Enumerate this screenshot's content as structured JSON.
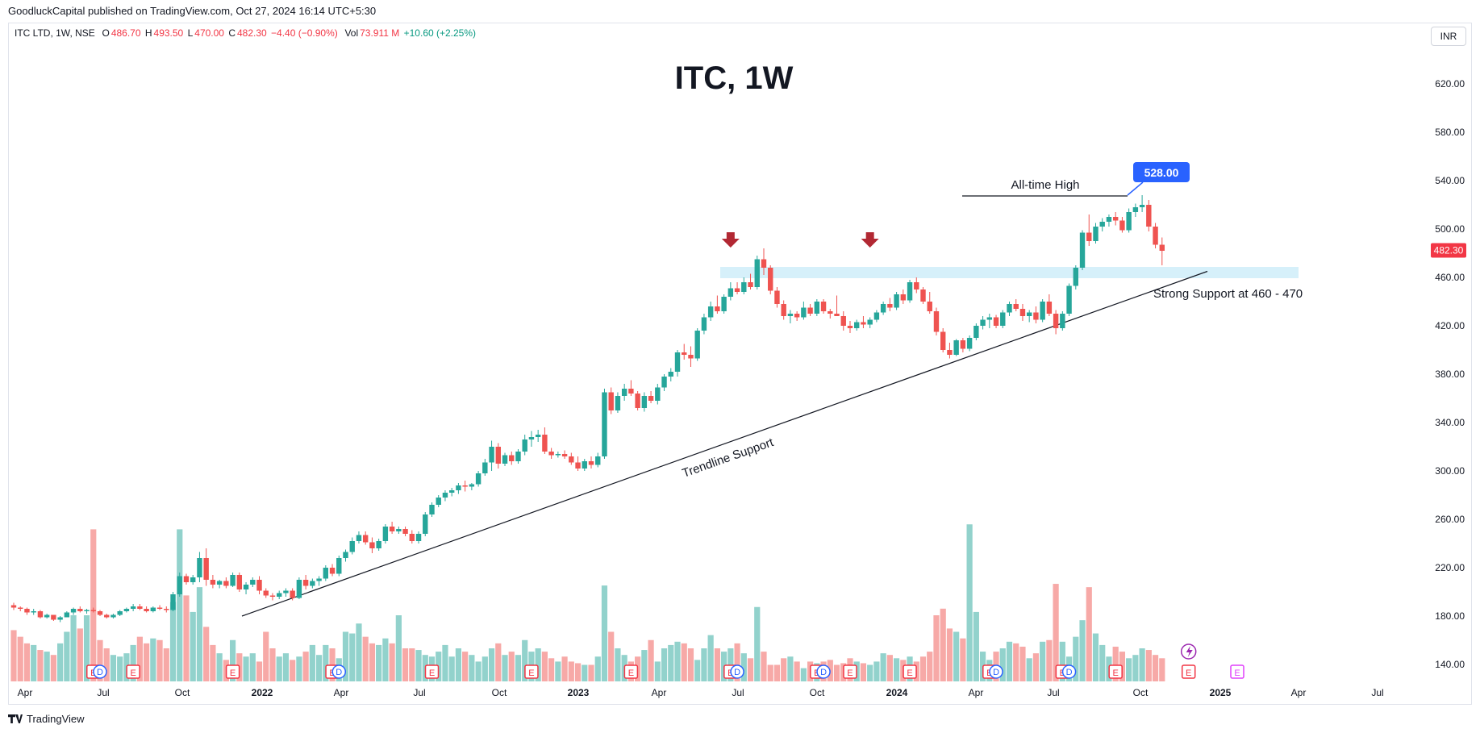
{
  "header": {
    "publisher": "GoodluckCapital published on TradingView.com, Oct 27, 2024 16:14 UTC+5:30"
  },
  "legend": {
    "symbol": "ITC LTD, 1W, NSE",
    "o_label": "O",
    "o_value": "486.70",
    "h_label": "H",
    "h_value": "493.50",
    "l_label": "L",
    "l_value": "470.00",
    "c_label": "C",
    "c_value": "482.30",
    "change": "−4.40 (−0.90%)",
    "vol_label": "Vol",
    "vol_value": "73.911 M",
    "vol_change": "+10.60 (+2.25%)"
  },
  "currency_button": "INR",
  "footer": {
    "brand": "TradingView"
  },
  "colors": {
    "up": "#26a69a",
    "down": "#ef5350",
    "vol_up": "#92d2cc",
    "vol_down": "#f7a9a7",
    "support_zone": "#d6f0fa",
    "marker_arrow": "#b22833",
    "price_badge": "#f23645",
    "ath_badge": "#2962ff",
    "dividend": "#2962ff",
    "earnings": "#f23645",
    "split": "#089981",
    "future_earnings": "#e040fb"
  },
  "chart_data": {
    "type": "candlestick",
    "title": "ITC, 1W",
    "y_axis": {
      "ticks": [
        140,
        180,
        220,
        260,
        300,
        340,
        380,
        420,
        460,
        500,
        540,
        580,
        620
      ],
      "range": [
        130,
        650
      ],
      "position": "right"
    },
    "x_axis": {
      "tick_labels": [
        "Apr",
        "Jul",
        "Oct",
        "2022",
        "Apr",
        "Jul",
        "Oct",
        "2023",
        "Apr",
        "Jul",
        "Oct",
        "2024",
        "Apr",
        "Jul",
        "Oct",
        "2025",
        "Apr",
        "Jul"
      ]
    },
    "current_price": "482.30",
    "candles": [
      [
        189,
        191,
        185,
        187
      ],
      [
        187,
        188,
        184,
        186
      ],
      [
        186,
        187,
        181,
        183
      ],
      [
        183,
        186,
        181,
        184
      ],
      [
        184,
        185,
        178,
        179
      ],
      [
        179,
        182,
        178,
        181
      ],
      [
        181,
        181,
        176,
        177
      ],
      [
        177,
        180,
        175,
        179
      ],
      [
        179,
        184,
        179,
        183
      ],
      [
        183,
        187,
        181,
        186
      ],
      [
        186,
        188,
        183,
        184
      ],
      [
        184,
        186,
        182,
        185
      ],
      [
        185,
        187,
        183,
        184
      ],
      [
        184,
        185,
        180,
        181
      ],
      [
        181,
        182,
        178,
        179
      ],
      [
        179,
        182,
        178,
        181
      ],
      [
        181,
        185,
        180,
        184
      ],
      [
        184,
        187,
        183,
        186
      ],
      [
        186,
        190,
        184,
        188
      ],
      [
        188,
        190,
        185,
        186
      ],
      [
        186,
        188,
        183,
        184
      ],
      [
        184,
        188,
        183,
        187
      ],
      [
        187,
        189,
        185,
        186
      ],
      [
        186,
        188,
        183,
        185
      ],
      [
        185,
        200,
        184,
        198
      ],
      [
        198,
        216,
        196,
        213
      ],
      [
        213,
        215,
        206,
        208
      ],
      [
        208,
        214,
        206,
        212
      ],
      [
        212,
        233,
        208,
        228
      ],
      [
        228,
        236,
        205,
        210
      ],
      [
        210,
        214,
        203,
        206
      ],
      [
        206,
        210,
        203,
        209
      ],
      [
        209,
        212,
        203,
        205
      ],
      [
        205,
        216,
        204,
        214
      ],
      [
        214,
        216,
        200,
        202
      ],
      [
        202,
        208,
        198,
        206
      ],
      [
        206,
        212,
        204,
        210
      ],
      [
        210,
        213,
        198,
        201
      ],
      [
        201,
        203,
        195,
        197
      ],
      [
        197,
        199,
        193,
        196
      ],
      [
        196,
        201,
        194,
        199
      ],
      [
        199,
        203,
        196,
        201
      ],
      [
        201,
        203,
        193,
        195
      ],
      [
        195,
        212,
        194,
        210
      ],
      [
        210,
        214,
        202,
        205
      ],
      [
        205,
        211,
        203,
        209
      ],
      [
        209,
        213,
        205,
        211
      ],
      [
        211,
        222,
        209,
        220
      ],
      [
        220,
        223,
        213,
        215
      ],
      [
        215,
        230,
        213,
        228
      ],
      [
        228,
        235,
        225,
        233
      ],
      [
        233,
        245,
        231,
        242
      ],
      [
        242,
        250,
        240,
        247
      ],
      [
        247,
        250,
        239,
        241
      ],
      [
        241,
        245,
        232,
        236
      ],
      [
        236,
        244,
        234,
        242
      ],
      [
        242,
        256,
        240,
        254
      ],
      [
        254,
        258,
        248,
        250
      ],
      [
        250,
        254,
        248,
        252
      ],
      [
        252,
        254,
        246,
        248
      ],
      [
        248,
        251,
        240,
        242
      ],
      [
        242,
        250,
        240,
        248
      ],
      [
        248,
        266,
        246,
        264
      ],
      [
        264,
        274,
        262,
        272
      ],
      [
        272,
        280,
        270,
        278
      ],
      [
        278,
        284,
        275,
        282
      ],
      [
        282,
        286,
        279,
        284
      ],
      [
        284,
        290,
        281,
        288
      ],
      [
        288,
        292,
        283,
        287
      ],
      [
        287,
        290,
        284,
        289
      ],
      [
        289,
        300,
        287,
        298
      ],
      [
        298,
        310,
        296,
        307
      ],
      [
        307,
        325,
        300,
        320
      ],
      [
        320,
        323,
        302,
        306
      ],
      [
        306,
        315,
        304,
        313
      ],
      [
        313,
        316,
        305,
        308
      ],
      [
        308,
        318,
        306,
        316
      ],
      [
        316,
        330,
        313,
        326
      ],
      [
        326,
        333,
        320,
        328
      ],
      [
        328,
        334,
        324,
        330
      ],
      [
        330,
        336,
        314,
        316
      ],
      [
        316,
        319,
        310,
        313
      ],
      [
        313,
        316,
        311,
        314
      ],
      [
        314,
        317,
        310,
        312
      ],
      [
        312,
        315,
        305,
        307
      ],
      [
        307,
        312,
        300,
        302
      ],
      [
        302,
        310,
        300,
        308
      ],
      [
        308,
        312,
        302,
        305
      ],
      [
        305,
        315,
        303,
        312
      ],
      [
        312,
        368,
        310,
        365
      ],
      [
        365,
        369,
        347,
        350
      ],
      [
        350,
        365,
        348,
        362
      ],
      [
        362,
        372,
        358,
        368
      ],
      [
        368,
        375,
        362,
        364
      ],
      [
        364,
        366,
        350,
        352
      ],
      [
        352,
        365,
        349,
        362
      ],
      [
        362,
        366,
        356,
        358
      ],
      [
        358,
        372,
        355,
        369
      ],
      [
        369,
        380,
        366,
        378
      ],
      [
        378,
        385,
        374,
        382
      ],
      [
        382,
        400,
        378,
        398
      ],
      [
        398,
        405,
        392,
        396
      ],
      [
        396,
        403,
        386,
        393
      ],
      [
        393,
        418,
        391,
        416
      ],
      [
        416,
        430,
        413,
        427
      ],
      [
        427,
        440,
        424,
        436
      ],
      [
        436,
        445,
        430,
        432
      ],
      [
        432,
        446,
        430,
        444
      ],
      [
        444,
        456,
        441,
        451
      ],
      [
        451,
        456,
        446,
        448
      ],
      [
        448,
        460,
        446,
        456
      ],
      [
        456,
        463,
        450,
        452
      ],
      [
        452,
        478,
        450,
        475
      ],
      [
        475,
        484,
        462,
        468
      ],
      [
        468,
        470,
        446,
        449
      ],
      [
        449,
        452,
        435,
        438
      ],
      [
        438,
        441,
        425,
        428
      ],
      [
        428,
        433,
        422,
        430
      ],
      [
        430,
        432,
        424,
        427
      ],
      [
        427,
        440,
        425,
        435
      ],
      [
        435,
        438,
        428,
        430
      ],
      [
        430,
        442,
        428,
        440
      ],
      [
        440,
        442,
        430,
        432
      ],
      [
        432,
        434,
        426,
        430
      ],
      [
        430,
        445,
        428,
        428
      ],
      [
        428,
        432,
        416,
        420
      ],
      [
        420,
        424,
        414,
        418
      ],
      [
        418,
        425,
        416,
        423
      ],
      [
        423,
        428,
        418,
        421
      ],
      [
        421,
        427,
        418,
        425
      ],
      [
        425,
        433,
        423,
        431
      ],
      [
        431,
        440,
        429,
        438
      ],
      [
        438,
        443,
        432,
        435
      ],
      [
        435,
        448,
        433,
        446
      ],
      [
        446,
        450,
        438,
        441
      ],
      [
        441,
        458,
        439,
        456
      ],
      [
        456,
        460,
        447,
        450
      ],
      [
        450,
        452,
        438,
        440
      ],
      [
        440,
        448,
        430,
        432
      ],
      [
        432,
        435,
        412,
        415
      ],
      [
        415,
        418,
        398,
        400
      ],
      [
        400,
        406,
        393,
        396
      ],
      [
        396,
        409,
        395,
        408
      ],
      [
        408,
        410,
        398,
        401
      ],
      [
        401,
        412,
        399,
        410
      ],
      [
        410,
        422,
        408,
        420
      ],
      [
        420,
        428,
        417,
        425
      ],
      [
        425,
        430,
        418,
        427
      ],
      [
        427,
        429,
        418,
        420
      ],
      [
        420,
        433,
        418,
        431
      ],
      [
        431,
        440,
        428,
        438
      ],
      [
        438,
        442,
        432,
        434
      ],
      [
        434,
        438,
        424,
        428
      ],
      [
        428,
        433,
        423,
        431
      ],
      [
        431,
        436,
        422,
        425
      ],
      [
        425,
        442,
        423,
        440
      ],
      [
        440,
        446,
        428,
        430
      ],
      [
        430,
        433,
        413,
        418
      ],
      [
        418,
        432,
        416,
        430
      ],
      [
        430,
        455,
        428,
        453
      ],
      [
        453,
        470,
        450,
        468
      ],
      [
        468,
        499,
        466,
        497
      ],
      [
        497,
        512,
        486,
        490
      ],
      [
        490,
        505,
        488,
        502
      ],
      [
        502,
        509,
        498,
        506
      ],
      [
        506,
        512,
        502,
        510
      ],
      [
        510,
        514,
        503,
        507
      ],
      [
        507,
        510,
        497,
        499
      ],
      [
        499,
        517,
        497,
        514
      ],
      [
        514,
        521,
        510,
        518
      ],
      [
        518,
        528,
        514,
        520
      ],
      [
        520,
        524,
        498,
        502
      ],
      [
        502,
        505,
        484,
        487
      ],
      [
        487,
        493,
        470,
        482
      ]
    ],
    "volume_scale": "relative (0-100)",
    "volumes": [
      31,
      27,
      23,
      22,
      19,
      18,
      16,
      23,
      30,
      40,
      32,
      40,
      92,
      25,
      20,
      16,
      15,
      17,
      22,
      27,
      23,
      26,
      25,
      20,
      48,
      92,
      52,
      42,
      57,
      33,
      22,
      17,
      13,
      25,
      17,
      15,
      17,
      12,
      30,
      20,
      15,
      17,
      13,
      15,
      18,
      22,
      16,
      22,
      20,
      14,
      30,
      29,
      35,
      27,
      23,
      22,
      26,
      23,
      40,
      20,
      20,
      19,
      16,
      15,
      18,
      22,
      15,
      20,
      18,
      16,
      12,
      15,
      20,
      23,
      16,
      18,
      16,
      25,
      18,
      20,
      18,
      14,
      12,
      15,
      12,
      11,
      10,
      10,
      15,
      58,
      30,
      20,
      16,
      12,
      15,
      19,
      25,
      12,
      20,
      22,
      24,
      23,
      20,
      13,
      20,
      28,
      20,
      18,
      20,
      23,
      17,
      14,
      45,
      18,
      10,
      10,
      14,
      15,
      12,
      8,
      12,
      11,
      12,
      13,
      10,
      11,
      14,
      12,
      11,
      10,
      12,
      17,
      16,
      14,
      13,
      15,
      12,
      15,
      18,
      40,
      44,
      32,
      30,
      26,
      95,
      42,
      18,
      13,
      18,
      20,
      24,
      23,
      21,
      14,
      17,
      24,
      25,
      59,
      24,
      15,
      27,
      37,
      57,
      29,
      22,
      15,
      21,
      18,
      14,
      16,
      20,
      19,
      16,
      14
    ]
  },
  "annotations": {
    "ath_label": "All-time High",
    "ath_value": "528.00",
    "support_label": "Strong Support at 460 - 470",
    "trendline_label": "Trendline Support"
  },
  "events": [
    {
      "type": "E",
      "idx": 12
    },
    {
      "type": "D",
      "idx": 13
    },
    {
      "type": "E",
      "idx": 18
    },
    {
      "type": "E",
      "idx": 33
    },
    {
      "type": "E",
      "idx": 48
    },
    {
      "type": "D",
      "idx": 49
    },
    {
      "type": "E",
      "idx": 63
    },
    {
      "type": "E",
      "idx": 78
    },
    {
      "type": "E",
      "idx": 93
    },
    {
      "type": "E",
      "idx": 108
    },
    {
      "type": "D",
      "idx": 109
    },
    {
      "type": "E",
      "idx": 121
    },
    {
      "type": "D",
      "idx": 122
    },
    {
      "type": "E",
      "idx": 126
    },
    {
      "type": "E",
      "idx": 135
    },
    {
      "type": "E",
      "idx": 147
    },
    {
      "type": "D",
      "idx": 148
    },
    {
      "type": "E",
      "idx": 158
    },
    {
      "type": "D",
      "idx": 159
    },
    {
      "type": "E",
      "idx": 166
    },
    {
      "type": "E",
      "idx": 177
    }
  ]
}
